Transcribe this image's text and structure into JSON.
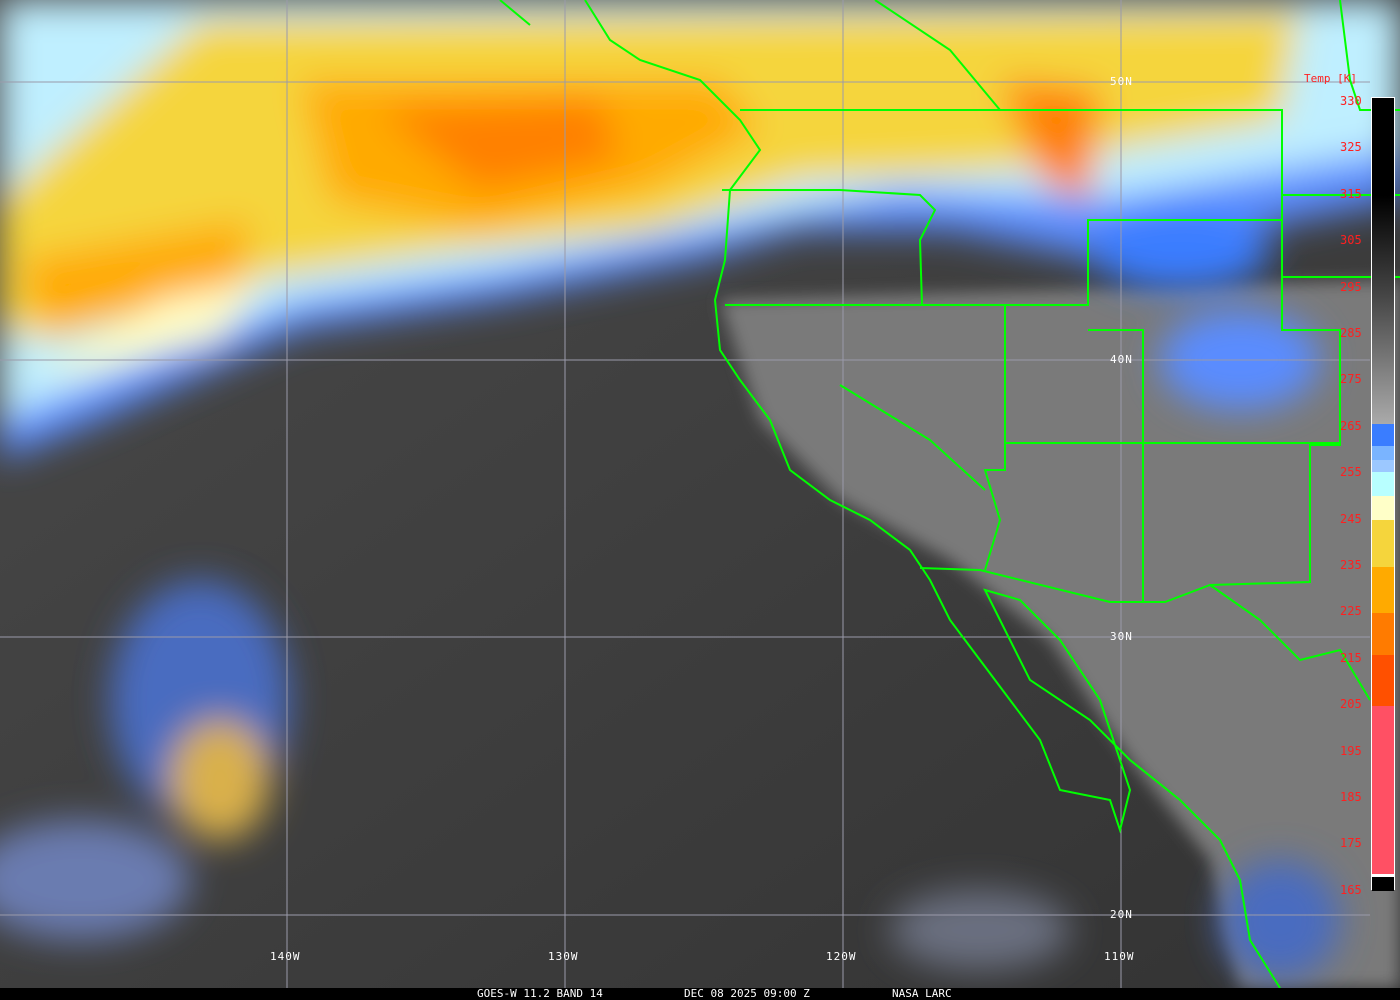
{
  "legend": {
    "title": "Temp [K]",
    "ticks": [
      "330",
      "325",
      "315",
      "305",
      "295",
      "285",
      "275",
      "265",
      "255",
      "245",
      "235",
      "225",
      "215",
      "205",
      "195",
      "185",
      "175",
      "165"
    ],
    "colors": {
      "cold_cloud_blue": "#3a7dff",
      "light_blue": "#7ab4ff",
      "cyan": "#b8ffff",
      "pale_yellow": "#ffffc8",
      "yellow": "#f5d53c",
      "orange": "#ffaa00",
      "dark_orange": "#ff7b00",
      "red_orange": "#ff5000",
      "pink": "#ff5064"
    }
  },
  "graticule": {
    "latitudes": [
      "50N",
      "40N",
      "30N",
      "20N"
    ],
    "longitudes": [
      "140W",
      "130W",
      "120W",
      "110W"
    ]
  },
  "boundary_color": "#00ff00",
  "footer": {
    "product": "GOES-W 11.2 BAND 14",
    "datetime": "DEC 08 2025 09:00 Z",
    "source": "NASA LARC"
  }
}
